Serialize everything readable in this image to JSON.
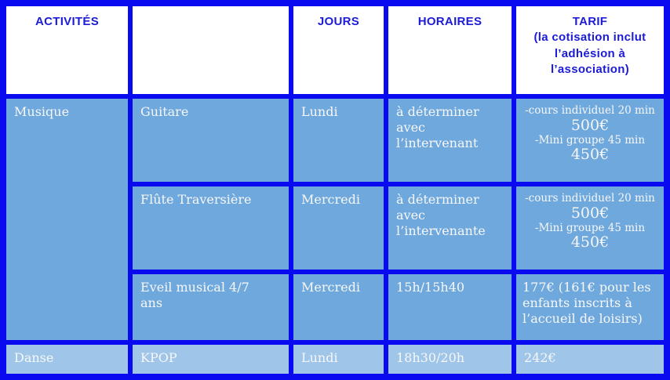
{
  "colors": {
    "border_blue": "#0a0af0",
    "header_text_blue": "#1b1bd8",
    "header_bg": "#ffffff",
    "row_medium_blue": "#6fa8dc",
    "row_light_blue": "#9fc5e8",
    "cell_text": "#f7f7f7"
  },
  "table": {
    "headers": {
      "activites": "ACTIVITÉS",
      "empty": "",
      "jours": "JOURS",
      "horaires": "HORAIRES",
      "tarif_title": "TARIF",
      "tarif_subnote": "(la cotisation inclut\nl’adhésion à\nl’association)"
    },
    "groups": [
      {
        "category": "Musique",
        "rows": [
          {
            "activity": "Guitare",
            "day": "Lundi",
            "schedule": "à déterminer\navec\nl’intervenant",
            "tarif": {
              "line1": "-cours individuel 20 min",
              "price1": "500€",
              "line2": "-Mini groupe 45 min",
              "price2": "450€"
            }
          },
          {
            "activity": "Flûte Traversière",
            "day": "Mercredi",
            "schedule": "à déterminer\navec\nl’intervenante",
            "tarif": {
              "line1": "-cours individuel 20 min",
              "price1": "500€",
              "line2": "-Mini groupe 45 min",
              "price2": "450€"
            }
          },
          {
            "activity": "Eveil musical 4/7\nans",
            "day": "Mercredi",
            "schedule": "15h/15h40",
            "tarif_text": "177€ (161€ pour les\nenfants inscrits à\nl’accueil de loisirs)"
          }
        ]
      },
      {
        "category": "Danse",
        "rows": [
          {
            "activity": "KPOP",
            "day": "Lundi",
            "schedule": "18h30/20h",
            "tarif_text": "242€"
          }
        ]
      }
    ]
  }
}
